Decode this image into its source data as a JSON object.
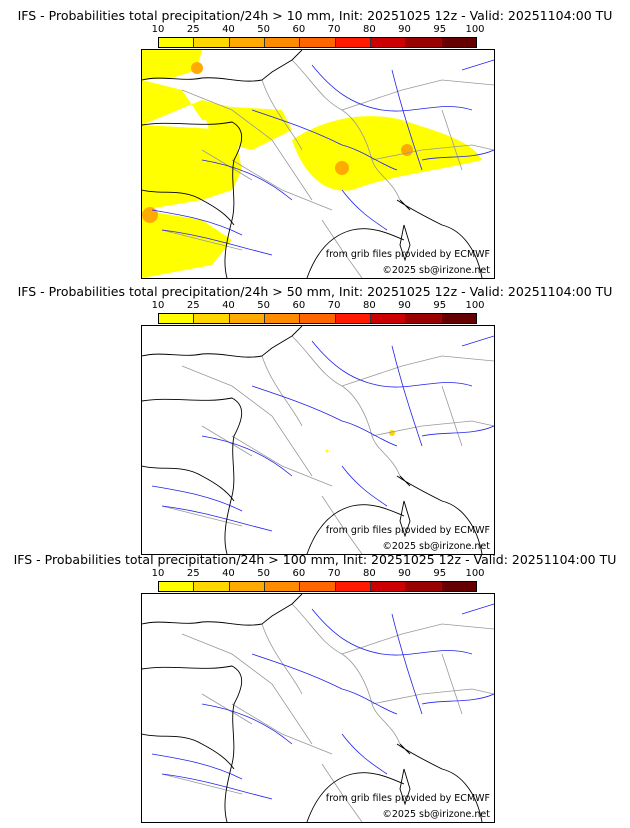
{
  "colorbar": {
    "ticks": [
      "10",
      "25",
      "40",
      "50",
      "60",
      "70",
      "80",
      "90",
      "95",
      "100"
    ],
    "colors": [
      "#ffff00",
      "#ffd700",
      "#ffaa00",
      "#ff8c00",
      "#ff6600",
      "#ff1a00",
      "#cc0000",
      "#990000",
      "#660000"
    ]
  },
  "panels": [
    {
      "title": "IFS - Probabilities total precipitation/24h > 10 mm, Init: 20251025 12z - Valid: 20251104:00 TU",
      "coverage": "high"
    },
    {
      "title": "IFS - Probabilities total precipitation/24h > 50 mm, Init: 20251025 12z - Valid: 20251104:00 TU",
      "coverage": "trace"
    },
    {
      "title": "IFS - Probabilities total precipitation/24h > 100 mm, Init: 20251025 12z - Valid: 20251104:00 TU",
      "coverage": "none"
    }
  ],
  "credits": {
    "source": "from grib files provided by ECMWF",
    "copyright": "©2025 sb@irizone.net"
  },
  "map_colors": {
    "coast": "#000000",
    "borders": "#999999",
    "rivers": "#2222ee"
  }
}
